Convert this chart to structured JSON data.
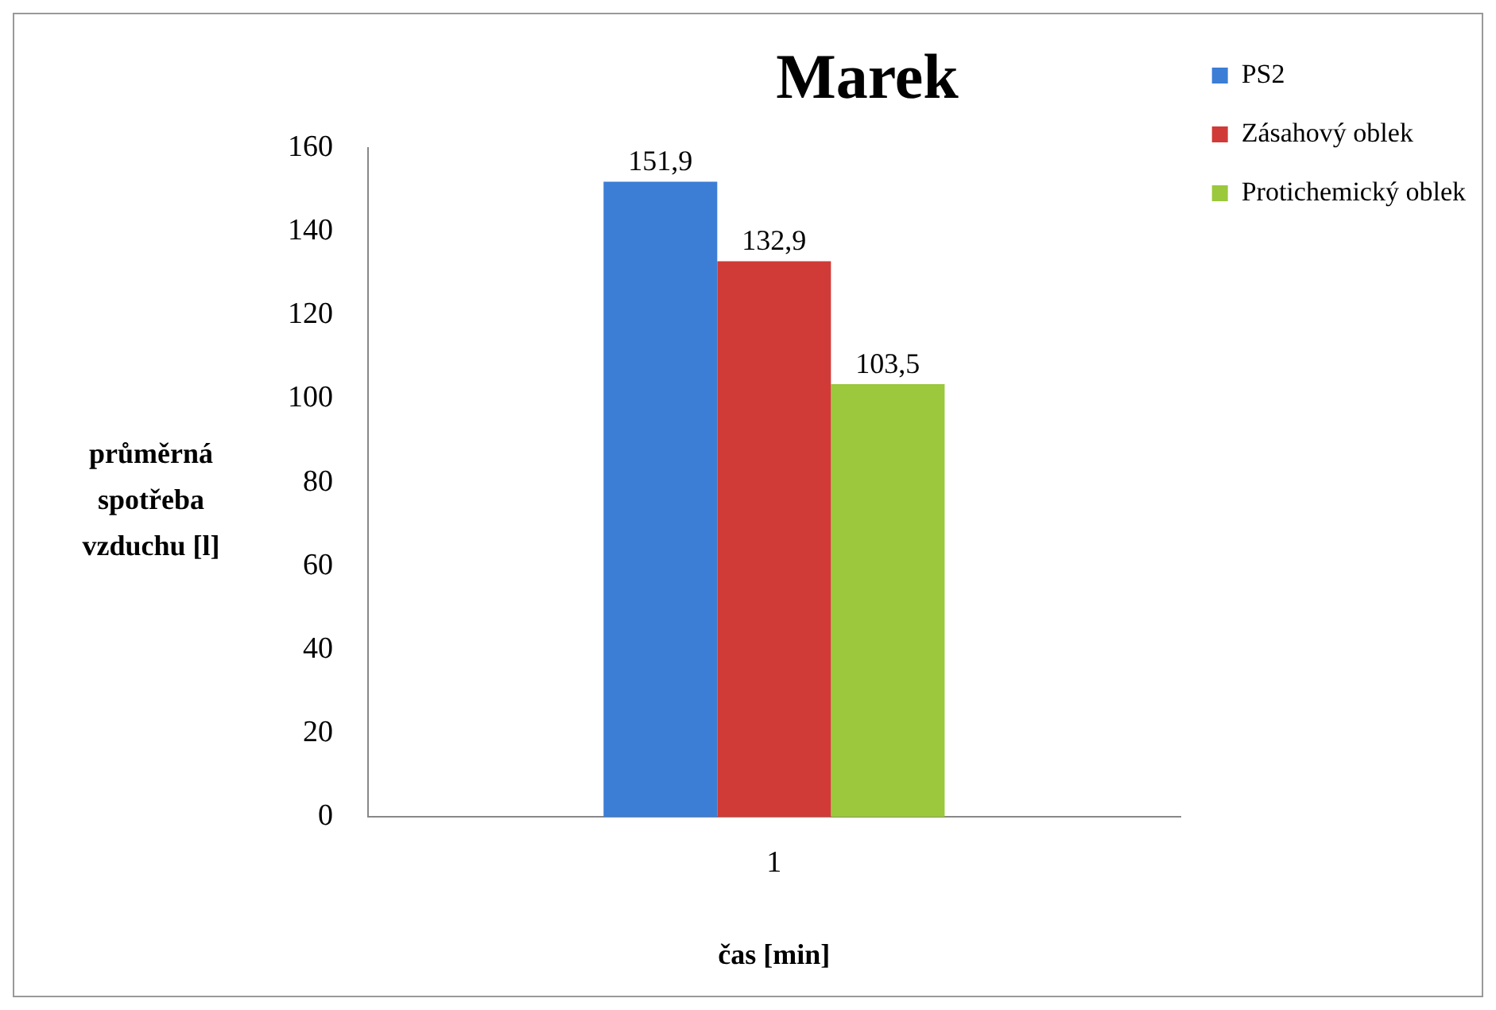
{
  "chart_data": {
    "type": "bar",
    "title": "Marek",
    "xlabel": "čas [min]",
    "ylabel": "průměrná spotřeba vzduchu [l]",
    "categories": [
      "1"
    ],
    "series": [
      {
        "name": "PS2",
        "color": "#3c7dd6",
        "values": [
          151.9
        ],
        "value_labels": [
          "151,9"
        ]
      },
      {
        "name": "Zásahový oblek",
        "color": "#d03b37",
        "values": [
          132.9
        ],
        "value_labels": [
          "132,9"
        ]
      },
      {
        "name": "Protichemický oblek",
        "color": "#9bc83c",
        "values": [
          103.5
        ],
        "value_labels": [
          "103,5"
        ]
      }
    ],
    "ylim": [
      0,
      160
    ],
    "yticks": [
      0,
      20,
      40,
      60,
      80,
      100,
      120,
      140,
      160
    ],
    "grid": false,
    "legend": "right"
  }
}
